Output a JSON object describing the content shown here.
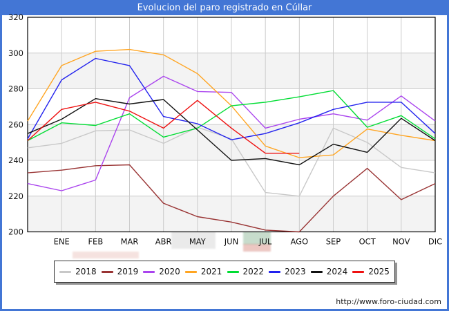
{
  "window": {
    "title": "Evolucion del paro registrado en Cúllar",
    "frame_color": "#4376d5",
    "watermark": "http://www.foro-ciudad.com"
  },
  "chart_data": {
    "type": "line",
    "title": "Evolucion del paro registrado en Cúllar",
    "x_categories": [
      "ENE",
      "FEB",
      "MAR",
      "ABR",
      "MAY",
      "JUN",
      "JUL",
      "AGO",
      "SEP",
      "OCT",
      "NOV",
      "DIC"
    ],
    "ylabel": "",
    "xlabel": "",
    "ylim": [
      200,
      320
    ],
    "yticks": [
      200,
      220,
      240,
      260,
      280,
      300,
      320
    ],
    "grid": true,
    "band_fill": "#f3f3f3",
    "grid_color": "#cccccc",
    "legend_position": "bottom",
    "note": "start_value is the level at the left plot edge (previous December); 2025 series ends in AGO",
    "series": [
      {
        "name": "2018",
        "color": "#c8c8c8",
        "start_value": 247,
        "values": [
          249.5,
          256.5,
          257,
          249.5,
          258.5,
          252,
          222,
          220,
          258,
          250,
          236,
          233
        ]
      },
      {
        "name": "2019",
        "color": "#993333",
        "start_value": 233,
        "values": [
          234.5,
          237,
          237.5,
          216,
          208.5,
          205.5,
          201,
          200,
          220,
          235.5,
          218,
          227
        ]
      },
      {
        "name": "2020",
        "color": "#aa44ee",
        "start_value": 227,
        "values": [
          223,
          229,
          275,
          287,
          278.5,
          278,
          258,
          263,
          266,
          262.5,
          276,
          262
        ]
      },
      {
        "name": "2021",
        "color": "#ffa522",
        "start_value": 262,
        "values": [
          293,
          301,
          302,
          299,
          288.5,
          270.5,
          248,
          241.5,
          243,
          257.5,
          254,
          251
        ]
      },
      {
        "name": "2022",
        "color": "#00dd33",
        "start_value": 251,
        "values": [
          261,
          259.5,
          266,
          253,
          258,
          270.5,
          272.5,
          275.5,
          279,
          258.5,
          265,
          252
        ]
      },
      {
        "name": "2023",
        "color": "#2222ee",
        "start_value": 252,
        "values": [
          285,
          297,
          293,
          264.5,
          260.5,
          251.5,
          255,
          261,
          268.5,
          272.5,
          272.5,
          255
        ]
      },
      {
        "name": "2024",
        "color": "#111111",
        "start_value": 255,
        "values": [
          263,
          274.5,
          271.5,
          274,
          257,
          240,
          241,
          237.5,
          249,
          244.5,
          263.5,
          251
        ]
      },
      {
        "name": "2025",
        "color": "#ee1111",
        "start_value": 251,
        "values": [
          268.5,
          272.5,
          267.5,
          258,
          273.5,
          258,
          244,
          244,
          null,
          null,
          null,
          null
        ]
      }
    ]
  }
}
